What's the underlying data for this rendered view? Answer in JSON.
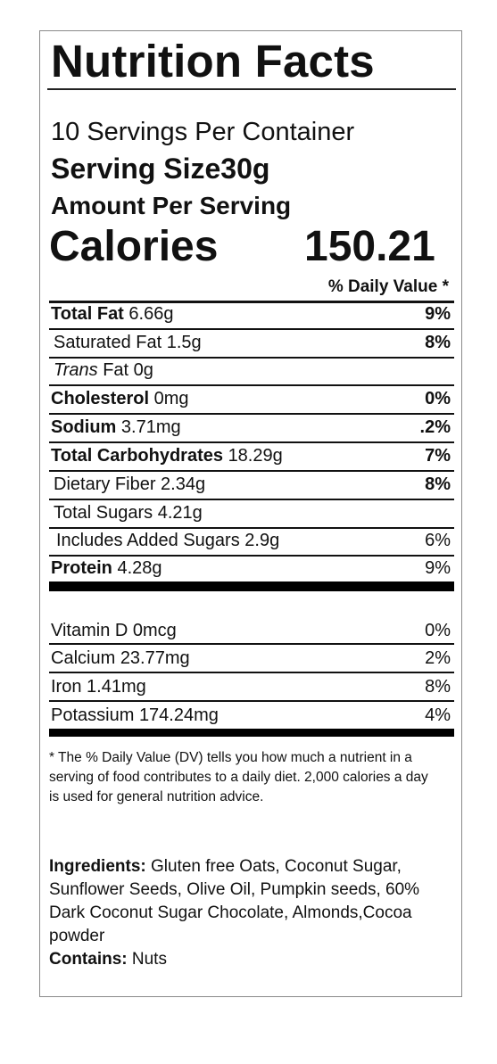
{
  "label": {
    "title": "Nutrition Facts",
    "servings_per_container": "10 Servings Per Container",
    "serving_size_label": "Serving Size",
    "serving_size_value": "30g",
    "amount_per_serving": "Amount Per Serving",
    "calories_label": "Calories",
    "calories_value": "150.21",
    "daily_value_header": "% Daily Value *",
    "nutrients": [
      {
        "name": "Total Fat",
        "amount": "6.66g",
        "pct": "9%"
      },
      {
        "name": "Saturated Fat",
        "amount": "1.5g",
        "pct": "8%"
      },
      {
        "name": "Trans",
        "amount": "Fat 0g",
        "pct": ""
      },
      {
        "name": "Cholesterol",
        "amount": "0mg",
        "pct": "0%"
      },
      {
        "name": "Sodium",
        "amount": "3.71mg",
        "pct": ".2%"
      },
      {
        "name": "Total Carbohydrates",
        "amount": "18.29g",
        "pct": "7%"
      },
      {
        "name": "Dietary Fiber",
        "amount": "2.34g",
        "pct": "8%"
      },
      {
        "name": "Total Sugars",
        "amount": "4.21g",
        "pct": ""
      },
      {
        "name": "Includes Added Sugars",
        "amount": "2.9g",
        "pct": "6%"
      },
      {
        "name": "Protein",
        "amount": "4.28g",
        "pct": "9%"
      }
    ],
    "vitamins": [
      {
        "name": "Vitamin D",
        "amount": "0mcg",
        "pct": "0%"
      },
      {
        "name": "Calcium",
        "amount": "23.77mg",
        "pct": "2%"
      },
      {
        "name": "Iron",
        "amount": "1.41mg",
        "pct": "8%"
      },
      {
        "name": "Potassium",
        "amount": "174.24mg",
        "pct": "4%"
      }
    ],
    "footnote": "* The % Daily Value (DV) tells you how much a nutrient in a serving of food contributes to a daily diet. 2,000 calories a day is used for general nutrition advice.",
    "ingredients_label": "Ingredients:",
    "ingredients_text": "Gluten free Oats, Coconut Sugar, Sunflower Seeds, Olive Oil, Pumpkin seeds, 60% Dark Coconut Sugar Chocolate, Almonds,Cocoa powder",
    "contains_label": "Contains:",
    "contains_text": "Nuts"
  }
}
